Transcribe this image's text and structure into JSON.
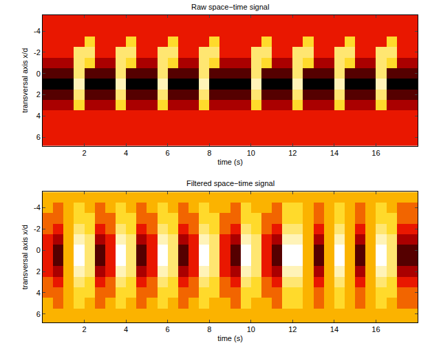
{
  "chart_data": [
    {
      "type": "heatmap",
      "title": "Raw space−time signal",
      "x_label": "time (s)",
      "y_label": "transversal axis x/d",
      "x": [
        0.25,
        0.75,
        1.25,
        1.75,
        2.25,
        2.75,
        3.25,
        3.75,
        4.25,
        4.75,
        5.25,
        5.75,
        6.25,
        6.75,
        7.25,
        7.75,
        8.25,
        8.75,
        9.25,
        9.75,
        10.25,
        10.75,
        11.25,
        11.75,
        12.25,
        12.75,
        13.25,
        13.75,
        14.25,
        14.75,
        15.25,
        15.75,
        16.25,
        16.75,
        17.25,
        17.75
      ],
      "y": [
        -5,
        -4,
        -3,
        -2,
        -1,
        0,
        1,
        2,
        3,
        4,
        5,
        6,
        7
      ],
      "z": [
        [
          3,
          3,
          3,
          3,
          3,
          3,
          3,
          3,
          3,
          3,
          3,
          3,
          3,
          3,
          3,
          3,
          3,
          3,
          3,
          3,
          3,
          3,
          3,
          3,
          3,
          3,
          3,
          3,
          3,
          3,
          3,
          3,
          3,
          3,
          3,
          3
        ],
        [
          3,
          3,
          3,
          3,
          3,
          3,
          3,
          3,
          3,
          3,
          3,
          3,
          3,
          3,
          3,
          3,
          3,
          3,
          3,
          3,
          3,
          3,
          3,
          3,
          3,
          3,
          3,
          3,
          3,
          3,
          3,
          3,
          3,
          3,
          3,
          3
        ],
        [
          3,
          3,
          3,
          3,
          6,
          3,
          3,
          3,
          6,
          3,
          3,
          3,
          6,
          3,
          3,
          3,
          6,
          3,
          3,
          3,
          3,
          6,
          3,
          3,
          3,
          6,
          3,
          3,
          3,
          6,
          3,
          3,
          3,
          6,
          3,
          3
        ],
        [
          3,
          3,
          3,
          7,
          7,
          3,
          3,
          7,
          7,
          3,
          3,
          7,
          7,
          3,
          3,
          7,
          7,
          3,
          3,
          3,
          7,
          7,
          3,
          3,
          7,
          7,
          3,
          3,
          7,
          7,
          3,
          3,
          7,
          7,
          3,
          3
        ],
        [
          2,
          2,
          2,
          7,
          6,
          2,
          2,
          7,
          6,
          2,
          2,
          7,
          6,
          2,
          2,
          7,
          6,
          2,
          2,
          2,
          7,
          6,
          2,
          2,
          7,
          6,
          2,
          2,
          7,
          6,
          2,
          2,
          7,
          6,
          2,
          2
        ],
        [
          1,
          1,
          1,
          7,
          1,
          1,
          1,
          7,
          1,
          1,
          1,
          7,
          1,
          1,
          1,
          7,
          1,
          1,
          1,
          1,
          7,
          1,
          1,
          1,
          7,
          1,
          1,
          1,
          7,
          1,
          1,
          1,
          7,
          1,
          1,
          1
        ],
        [
          0,
          0,
          0,
          8,
          0,
          0,
          0,
          8,
          0,
          0,
          0,
          8,
          0,
          0,
          0,
          8,
          0,
          0,
          0,
          0,
          8,
          0,
          0,
          0,
          8,
          0,
          0,
          0,
          8,
          0,
          0,
          0,
          8,
          0,
          0,
          0
        ],
        [
          1,
          1,
          1,
          7,
          1,
          1,
          1,
          7,
          1,
          1,
          1,
          7,
          1,
          1,
          1,
          7,
          1,
          1,
          1,
          1,
          7,
          1,
          1,
          1,
          7,
          1,
          1,
          1,
          7,
          1,
          1,
          1,
          7,
          1,
          1,
          1
        ],
        [
          2,
          2,
          2,
          6,
          2,
          2,
          2,
          6,
          2,
          2,
          2,
          6,
          2,
          2,
          2,
          6,
          2,
          2,
          2,
          2,
          6,
          2,
          2,
          2,
          6,
          2,
          2,
          2,
          6,
          2,
          2,
          2,
          6,
          2,
          2,
          2
        ],
        [
          3,
          3,
          3,
          3,
          3,
          3,
          3,
          3,
          3,
          3,
          3,
          3,
          3,
          3,
          3,
          3,
          3,
          3,
          3,
          3,
          3,
          3,
          3,
          3,
          3,
          3,
          3,
          3,
          3,
          3,
          3,
          3,
          3,
          3,
          3,
          3
        ],
        [
          3,
          3,
          3,
          3,
          3,
          3,
          3,
          3,
          3,
          3,
          3,
          3,
          3,
          3,
          3,
          3,
          3,
          3,
          3,
          3,
          3,
          3,
          3,
          3,
          3,
          3,
          3,
          3,
          3,
          3,
          3,
          3,
          3,
          3,
          3,
          3
        ],
        [
          3,
          3,
          3,
          3,
          3,
          3,
          3,
          3,
          3,
          3,
          3,
          3,
          3,
          3,
          3,
          3,
          3,
          3,
          3,
          3,
          3,
          3,
          3,
          3,
          3,
          3,
          3,
          3,
          3,
          3,
          3,
          3,
          3,
          3,
          3,
          3
        ],
        [
          3,
          3,
          3,
          3,
          3,
          3,
          3,
          3,
          3,
          3,
          3,
          3,
          3,
          3,
          3,
          3,
          3,
          3,
          3,
          3,
          3,
          3,
          3,
          3,
          3,
          3,
          3,
          3,
          3,
          3,
          3,
          3,
          3,
          3,
          3,
          3
        ]
      ],
      "zlim": [
        0,
        9
      ],
      "xlim": [
        0,
        18
      ],
      "xticks": [
        2,
        4,
        6,
        8,
        10,
        12,
        14,
        16
      ],
      "ylim": [
        6.8,
        -5.5
      ],
      "yticks": [
        -4,
        -2,
        0,
        2,
        4,
        6
      ]
    },
    {
      "type": "heatmap",
      "title": "Filtered space−time signal",
      "x_label": "time (s)",
      "y_label": "transversal axis x/d",
      "x": [
        0.25,
        0.75,
        1.25,
        1.75,
        2.25,
        2.75,
        3.25,
        3.75,
        4.25,
        4.75,
        5.25,
        5.75,
        6.25,
        6.75,
        7.25,
        7.75,
        8.25,
        8.75,
        9.25,
        9.75,
        10.25,
        10.75,
        11.25,
        11.75,
        12.25,
        12.75,
        13.25,
        13.75,
        14.25,
        14.75,
        15.25,
        15.75,
        16.25,
        16.75,
        17.25,
        17.75
      ],
      "y": [
        -5,
        -4,
        -3,
        -2,
        -1,
        0,
        1,
        2,
        3,
        4,
        5,
        6,
        7
      ],
      "z": [
        [
          5,
          5,
          5,
          5,
          5,
          5,
          5,
          5,
          5,
          5,
          5,
          5,
          5,
          5,
          5,
          5,
          5,
          5,
          5,
          5,
          5,
          5,
          5,
          5,
          5,
          5,
          5,
          5,
          5,
          5,
          5,
          5,
          5,
          5,
          5,
          5
        ],
        [
          5,
          4,
          5,
          6,
          5,
          4,
          5,
          6,
          5,
          4,
          5,
          6,
          5,
          4,
          5,
          6,
          5,
          5,
          4,
          6,
          5,
          5,
          4,
          6,
          6,
          5,
          4,
          5,
          6,
          5,
          4,
          5,
          6,
          5,
          4,
          4
        ],
        [
          4,
          4,
          5,
          6,
          6,
          4,
          4,
          6,
          6,
          4,
          4,
          6,
          6,
          4,
          4,
          6,
          6,
          4,
          4,
          6,
          6,
          4,
          4,
          6,
          6,
          5,
          4,
          5,
          6,
          5,
          4,
          5,
          6,
          6,
          4,
          4
        ],
        [
          4,
          3,
          5,
          7,
          6,
          3,
          4,
          7,
          6,
          3,
          4,
          7,
          6,
          3,
          4,
          7,
          6,
          4,
          3,
          7,
          6,
          4,
          3,
          7,
          7,
          5,
          3,
          5,
          7,
          5,
          3,
          5,
          7,
          6,
          3,
          3
        ],
        [
          3,
          2,
          5,
          8,
          7,
          2,
          3,
          8,
          7,
          2,
          3,
          8,
          7,
          2,
          3,
          8,
          7,
          3,
          2,
          8,
          7,
          3,
          2,
          8,
          8,
          5,
          2,
          5,
          8,
          5,
          2,
          5,
          8,
          7,
          2,
          2
        ],
        [
          3,
          1,
          5,
          9,
          7,
          1,
          3,
          9,
          7,
          1,
          3,
          9,
          7,
          1,
          3,
          9,
          7,
          3,
          1,
          9,
          7,
          3,
          1,
          9,
          9,
          5,
          1,
          5,
          9,
          5,
          1,
          5,
          9,
          7,
          1,
          1
        ],
        [
          3,
          1,
          5,
          9,
          7,
          1,
          3,
          9,
          7,
          1,
          3,
          9,
          7,
          1,
          3,
          9,
          7,
          3,
          1,
          9,
          7,
          3,
          1,
          9,
          9,
          5,
          1,
          5,
          9,
          5,
          1,
          5,
          9,
          7,
          1,
          1
        ],
        [
          3,
          2,
          5,
          8,
          7,
          2,
          3,
          8,
          7,
          2,
          3,
          8,
          7,
          2,
          3,
          8,
          7,
          3,
          2,
          8,
          7,
          3,
          2,
          8,
          8,
          5,
          2,
          5,
          8,
          5,
          2,
          5,
          8,
          7,
          2,
          2
        ],
        [
          4,
          3,
          5,
          7,
          6,
          3,
          4,
          7,
          6,
          3,
          4,
          7,
          6,
          3,
          4,
          7,
          6,
          4,
          3,
          7,
          6,
          4,
          3,
          7,
          7,
          5,
          3,
          5,
          7,
          5,
          3,
          5,
          7,
          6,
          3,
          3
        ],
        [
          4,
          4,
          5,
          6,
          6,
          4,
          4,
          6,
          6,
          4,
          4,
          6,
          6,
          4,
          4,
          6,
          6,
          4,
          4,
          6,
          6,
          4,
          4,
          6,
          6,
          5,
          4,
          5,
          6,
          5,
          4,
          5,
          6,
          6,
          4,
          4
        ],
        [
          5,
          4,
          5,
          6,
          5,
          4,
          5,
          6,
          5,
          4,
          5,
          6,
          5,
          4,
          5,
          6,
          5,
          5,
          4,
          6,
          5,
          5,
          4,
          6,
          6,
          5,
          4,
          5,
          6,
          5,
          4,
          5,
          6,
          5,
          4,
          4
        ],
        [
          5,
          5,
          5,
          5,
          5,
          5,
          5,
          5,
          5,
          5,
          5,
          5,
          5,
          5,
          5,
          5,
          5,
          5,
          5,
          5,
          5,
          5,
          5,
          5,
          5,
          5,
          5,
          5,
          5,
          5,
          5,
          5,
          5,
          5,
          5,
          5
        ],
        [
          5,
          5,
          5,
          5,
          5,
          5,
          5,
          5,
          5,
          5,
          5,
          5,
          5,
          5,
          5,
          5,
          5,
          5,
          5,
          5,
          5,
          5,
          5,
          5,
          5,
          5,
          5,
          5,
          5,
          5,
          5,
          5,
          5,
          5,
          5,
          5
        ]
      ],
      "zlim": [
        0,
        9
      ],
      "xlim": [
        0,
        18
      ],
      "xticks": [
        2,
        4,
        6,
        8,
        10,
        12,
        14,
        16
      ],
      "ylim": [
        6.8,
        -5.5
      ],
      "yticks": [
        -4,
        -2,
        0,
        2,
        4,
        6
      ]
    }
  ]
}
